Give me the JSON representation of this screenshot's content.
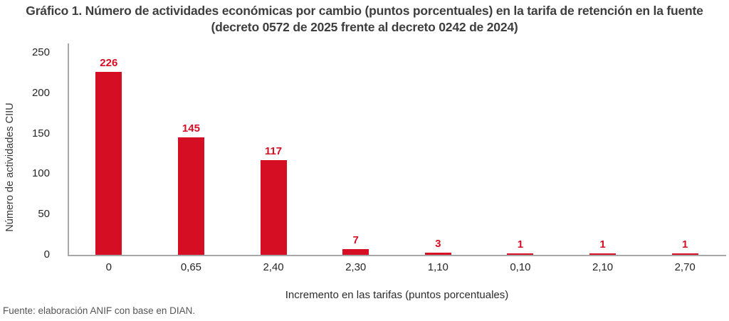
{
  "chart_data": {
    "type": "bar",
    "title": "Gráfico 1. Número de actividades económicas por cambio (puntos porcentuales) en la tarifa de retención en la fuente (decreto 0572 de 2025 frente al decreto 0242 de 2024)",
    "categories": [
      "0",
      "0,65",
      "2,40",
      "2,30",
      "1,10",
      "0,10",
      "2,10",
      "2,70"
    ],
    "values": [
      226,
      145,
      117,
      7,
      3,
      1,
      1,
      1
    ],
    "xlabel": "Incremento en las tarifas (puntos porcentuales)",
    "ylabel": "Número de actividades CIIU",
    "ylim": [
      0,
      250
    ],
    "yticks": [
      0,
      50,
      100,
      150,
      200,
      250
    ],
    "grid": false,
    "legend": false,
    "data_labels": true,
    "colors": {
      "bar": "#D60E23",
      "value_label": "#D60E23",
      "axis_line": "#A8A8A8",
      "tick_text": "#262626",
      "title_text": "#3E3E3E"
    },
    "source": "Fuente: elaboración ANIF con base en DIAN."
  }
}
